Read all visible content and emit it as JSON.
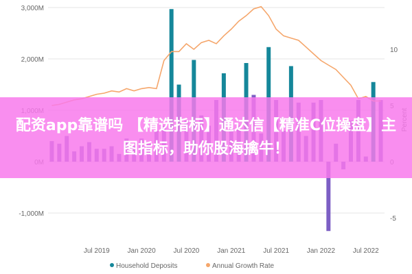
{
  "chart_data": {
    "type": "bar+line",
    "categories": [
      "Jan 2019",
      "Feb 2019",
      "Mar 2019",
      "Apr 2019",
      "May 2019",
      "Jun 2019",
      "Jul 2019",
      "Aug 2019",
      "Sep 2019",
      "Oct 2019",
      "Nov 2019",
      "Dec 2019",
      "Jan 2020",
      "Feb 2020",
      "Mar 2020",
      "Apr 2020",
      "May 2020",
      "Jun 2020",
      "Jul 2020",
      "Aug 2020",
      "Sep 2020",
      "Oct 2020",
      "Nov 2020",
      "Dec 2020",
      "Jan 2021",
      "Feb 2021",
      "Mar 2021",
      "Apr 2021",
      "May 2021",
      "Jun 2021",
      "Jul 2021",
      "Aug 2021",
      "Sep 2021",
      "Oct 2021",
      "Nov 2021",
      "Dec 2021",
      "Jan 2022",
      "Feb 2022",
      "Mar 2022",
      "Apr 2022",
      "May 2022",
      "Jun 2022",
      "Jul 2022",
      "Aug 2022",
      "Sep 2022"
    ],
    "series": [
      {
        "name": "Household Deposits",
        "axis": "left",
        "values": [
          400,
          350,
          500,
          200,
          300,
          380,
          250,
          250,
          300,
          150,
          450,
          300,
          450,
          350,
          600,
          700,
          2970,
          1500,
          800,
          1980,
          900,
          700,
          1200,
          1720,
          650,
          700,
          1920,
          1300,
          550,
          2230,
          1200,
          600,
          1860,
          1150,
          500,
          1150,
          1200,
          -1350,
          350,
          -150,
          800,
          1200,
          100,
          1550,
          1200
        ]
      },
      {
        "name": "Annual Growth Rate",
        "axis": "right",
        "values": [
          5.0,
          5.1,
          5.3,
          5.5,
          5.6,
          5.8,
          6.0,
          6.1,
          6.3,
          6.2,
          6.5,
          6.3,
          6.5,
          6.6,
          6.5,
          9.0,
          9.8,
          9.8,
          10.5,
          10.0,
          10.6,
          10.8,
          10.5,
          11.2,
          11.8,
          12.5,
          13.0,
          13.6,
          13.8,
          13.0,
          11.8,
          11.2,
          11.0,
          10.8,
          10.2,
          9.6,
          9.0,
          8.6,
          8.2,
          7.5,
          6.8,
          5.6,
          5.8,
          5.4,
          5.4
        ]
      }
    ],
    "y_left": {
      "min": -1000,
      "max": 3000,
      "ticks": [
        "3,000M",
        "2,000M",
        "1,000M",
        "0M",
        "-1,000M"
      ]
    },
    "y_right": {
      "ticks": [
        "10",
        "5",
        "0",
        "-5"
      ],
      "label": "Percent"
    },
    "x_ticks": [
      "Jul 2019",
      "Jan 2020",
      "Jul 2020",
      "Jan 2021",
      "Jul 2021",
      "Jan 2022",
      "Jul 2022"
    ],
    "legend": {
      "position": "bottom"
    },
    "colors": {
      "bars": "#15879a",
      "bars_faded": "#7c5fc4",
      "line": "#f5a66b",
      "grid": "#e6e6e6",
      "axis_text": "#666666"
    }
  },
  "overlay": {
    "text": "配资app靠谱吗 【精选指标】通达信【精准C位操盘】主图指标，助你股海擒牛！",
    "background": "#f878ec",
    "text_color": "#ffffff"
  }
}
